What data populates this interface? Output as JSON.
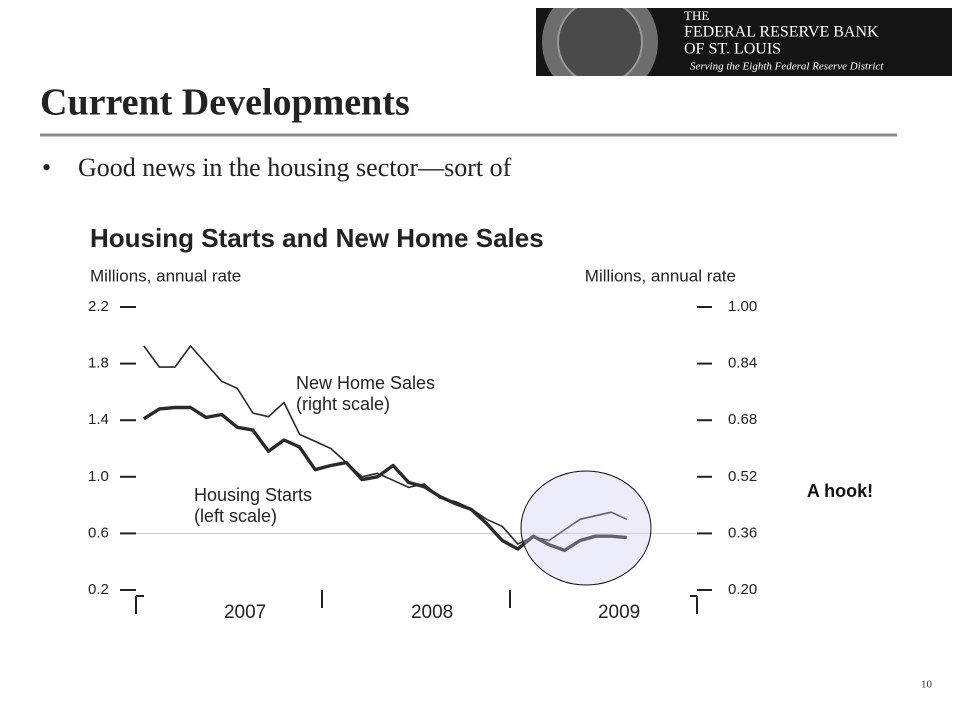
{
  "slide": {
    "title": "Current Developments",
    "bullet": "Good news in the housing sector—sort of",
    "logo": {
      "line1": "THE",
      "line2": "FEDERAL RESERVE BANK",
      "line3": "OF ST. LOUIS",
      "tagline": "Serving the Eighth Federal Reserve District"
    },
    "callout": "A hook!",
    "page_number": "10"
  },
  "chart_data": {
    "type": "line",
    "title": "Housing Starts and New Home Sales",
    "y_label": "Millions, annual rate",
    "y2_label": "Millions, annual rate",
    "categories": [
      null,
      null,
      null,
      null,
      null,
      null,
      "2007",
      null,
      null,
      null,
      null,
      null,
      null,
      null,
      null,
      null,
      null,
      null,
      "2008",
      null,
      null,
      null,
      null,
      null,
      null,
      null,
      null,
      null,
      null,
      null,
      "2009",
      null
    ],
    "ylim": [
      0.2,
      2.2
    ],
    "yticks": [
      0.2,
      0.6,
      {
        "value": 1,
        "label": "1.0"
      },
      1.4,
      1.8,
      2.2
    ],
    "y2lim": [
      0.2,
      1
    ],
    "y2ticks": [
      {
        "value": 0.2,
        "label": "0.20"
      },
      0.36,
      0.52,
      0.68,
      0.84,
      {
        "value": 1,
        "label": "1.00"
      }
    ],
    "series": [
      {
        "name": "New Home Sales",
        "axis": "y2",
        "color": "#2a2a2a",
        "values": [
          0.89,
          0.83,
          0.83,
          0.89,
          0.84,
          0.79,
          0.77,
          0.7,
          0.69,
          0.73,
          0.64,
          0.62,
          0.6,
          0.56,
          0.52,
          0.53,
          0.51,
          0.49,
          0.5,
          0.46,
          0.45,
          0.43,
          0.4,
          0.38,
          0.33,
          0.35,
          0.34,
          0.37,
          0.4,
          0.41,
          0.42,
          0.4
        ]
      },
      {
        "name": "Housing Starts",
        "axis": "y",
        "color": "#2a2a2a",
        "values": [
          1.41,
          1.48,
          1.49,
          1.49,
          1.42,
          1.44,
          1.35,
          1.33,
          1.18,
          1.26,
          1.21,
          1.05,
          1.08,
          1.1,
          0.98,
          1.0,
          1.08,
          0.96,
          0.93,
          0.86,
          0.81,
          0.77,
          0.67,
          0.55,
          0.49,
          0.58,
          0.52,
          0.48,
          0.55,
          0.58,
          0.58,
          0.57
        ]
      }
    ],
    "annotations": [
      "(right scale)",
      "(left scale)"
    ]
  }
}
